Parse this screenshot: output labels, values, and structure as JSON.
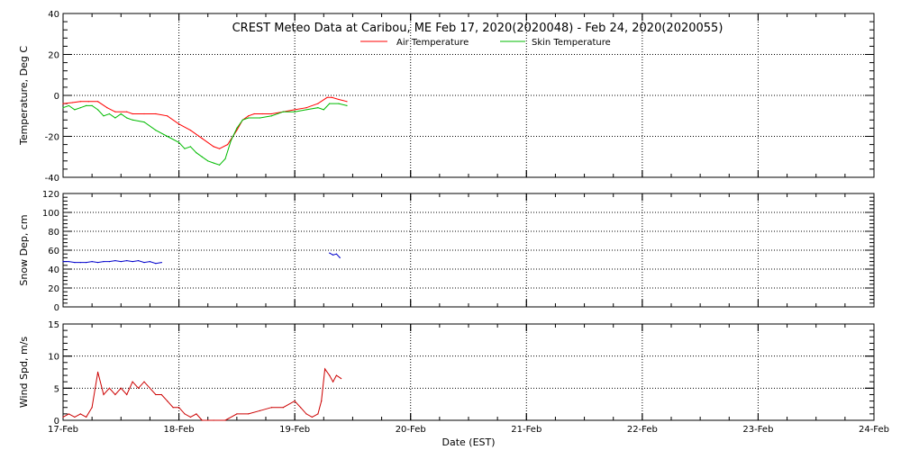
{
  "chart_data": {
    "type": "line",
    "title": "CREST Meteo Data at Caribou, ME   Feb 17, 2020(2020048) - Feb 24, 2020(2020055)",
    "xlabel": "Date (EST)",
    "x_tick_labels": [
      "17-Feb",
      "18-Feb",
      "19-Feb",
      "20-Feb",
      "21-Feb",
      "22-Feb",
      "23-Feb",
      "24-Feb"
    ],
    "xlim": [
      0,
      7
    ],
    "x_unit": "days since 17-Feb 00:00 EST",
    "grid": true,
    "panels": [
      {
        "ylabel": "Temperature, Deg C",
        "ylim": [
          -40,
          40
        ],
        "yticks": [
          -40,
          -20,
          0,
          20,
          40
        ],
        "legend": "top-center",
        "series": [
          {
            "name": "Air Temperature",
            "color": "#ff0000",
            "x": [
              0,
              0.08,
              0.15,
              0.22,
              0.3,
              0.38,
              0.45,
              0.55,
              0.6,
              0.7,
              0.8,
              0.9,
              1.0,
              1.1,
              1.2,
              1.3,
              1.35,
              1.42,
              1.5,
              1.55,
              1.6,
              1.65,
              1.72,
              1.8,
              1.9,
              2.0,
              2.1,
              2.2,
              2.28,
              2.32,
              2.38,
              2.45
            ],
            "y": [
              -4,
              -3.5,
              -3,
              -3,
              -3,
              -6,
              -8,
              -8,
              -9,
              -9,
              -9,
              -10,
              -14,
              -17,
              -21,
              -25,
              -26,
              -24,
              -17,
              -12,
              -10,
              -9,
              -9,
              -9,
              -8,
              -7,
              -6,
              -4,
              -1,
              -1,
              -2,
              -3
            ]
          },
          {
            "name": "Skin Temperature",
            "color": "#00bb00",
            "x": [
              0,
              0.05,
              0.1,
              0.15,
              0.2,
              0.25,
              0.3,
              0.35,
              0.4,
              0.45,
              0.5,
              0.55,
              0.6,
              0.7,
              0.8,
              0.9,
              1.0,
              1.05,
              1.1,
              1.15,
              1.2,
              1.25,
              1.3,
              1.35,
              1.4,
              1.45,
              1.5,
              1.55,
              1.6,
              1.7,
              1.8,
              1.9,
              2.0,
              2.1,
              2.2,
              2.25,
              2.3,
              2.38,
              2.45
            ],
            "y": [
              -6,
              -5,
              -7,
              -6,
              -5,
              -5,
              -7,
              -10,
              -9,
              -11,
              -9,
              -11,
              -12,
              -13,
              -17,
              -20,
              -23,
              -26,
              -25,
              -28,
              -30,
              -32,
              -33,
              -34,
              -31,
              -22,
              -16,
              -12,
              -11,
              -11,
              -10,
              -8,
              -8,
              -7,
              -6,
              -7,
              -4,
              -4,
              -5
            ]
          }
        ]
      },
      {
        "ylabel": "Snow Dep, cm",
        "ylim": [
          0,
          120
        ],
        "yticks": [
          0,
          20,
          40,
          60,
          80,
          100,
          120
        ],
        "series": [
          {
            "name": "Snow Depth",
            "color": "#0000cc",
            "x": [
              0,
              0.05,
              0.1,
              0.15,
              0.2,
              0.25,
              0.3,
              0.35,
              0.4,
              0.45,
              0.5,
              0.55,
              0.6,
              0.65,
              0.7,
              0.75,
              0.8,
              0.85
            ],
            "y": [
              48,
              48,
              47,
              47,
              47,
              48,
              47,
              48,
              48,
              49,
              48,
              49,
              48,
              49,
              47,
              48,
              46,
              47
            ]
          },
          {
            "name": "Snow Depth (2)",
            "color": "#0000cc",
            "x": [
              2.3,
              2.33,
              2.36,
              2.39
            ],
            "y": [
              57,
              55,
              56,
              52
            ]
          }
        ]
      },
      {
        "ylabel": "Wind Spd, m/s",
        "ylim": [
          0,
          15
        ],
        "yticks": [
          0,
          5,
          10,
          15
        ],
        "series": [
          {
            "name": "Wind Speed",
            "color": "#cc0000",
            "x": [
              0,
              0.05,
              0.1,
              0.15,
              0.2,
              0.25,
              0.3,
              0.35,
              0.4,
              0.45,
              0.5,
              0.55,
              0.6,
              0.65,
              0.7,
              0.75,
              0.8,
              0.85,
              0.9,
              0.95,
              1.0,
              1.05,
              1.1,
              1.15,
              1.2,
              1.3,
              1.4,
              1.5,
              1.6,
              1.7,
              1.8,
              1.9,
              2.0,
              2.05,
              2.1,
              2.15,
              2.2,
              2.23,
              2.26,
              2.3,
              2.33,
              2.36,
              2.4
            ],
            "y": [
              0.5,
              1,
              0.5,
              1,
              0.5,
              2,
              7.5,
              4,
              5,
              4,
              5,
              4,
              6,
              5,
              6,
              5,
              4,
              4,
              3,
              2,
              2,
              1,
              0.5,
              1,
              0,
              0,
              0,
              1,
              1,
              1.5,
              2,
              2,
              3,
              2,
              1,
              0.5,
              1,
              3,
              8,
              7,
              6,
              7,
              6.5
            ]
          }
        ]
      }
    ]
  }
}
